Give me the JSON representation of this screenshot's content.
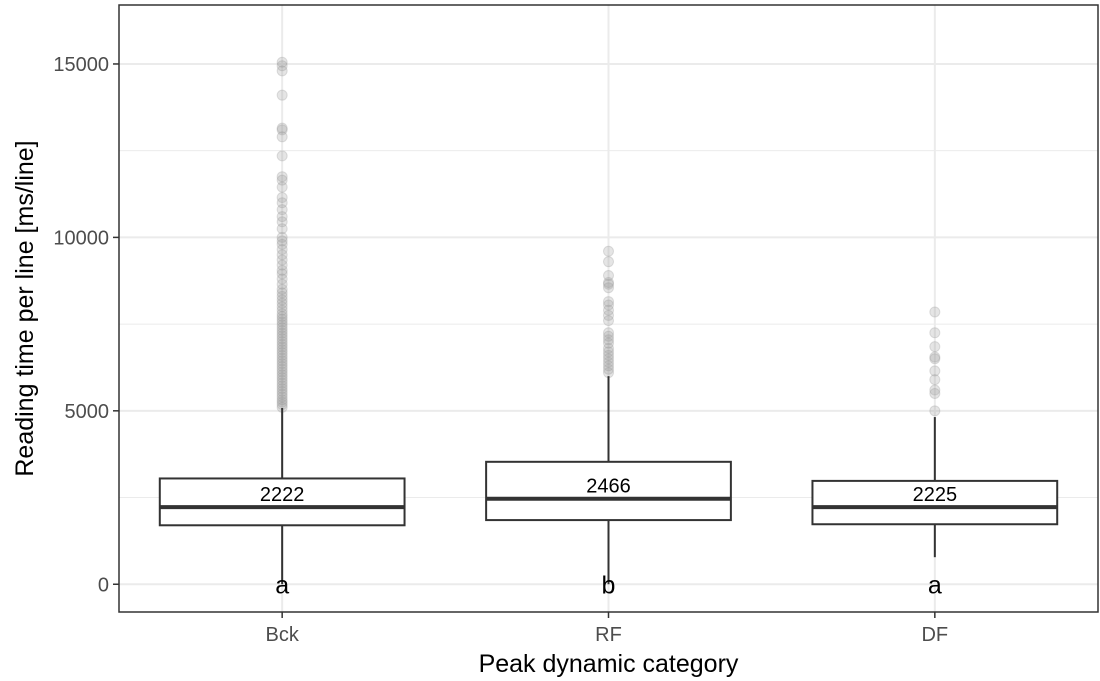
{
  "chart_data": {
    "type": "box",
    "xlabel": "Peak dynamic category",
    "ylabel": "Reading time per line [ms/line]",
    "ylim": [
      -800,
      16700
    ],
    "yticks": [
      0,
      5000,
      10000,
      15000
    ],
    "grid": true,
    "colors": {
      "box": "#333333",
      "grid": "#ebebeb",
      "outlier": "#999999",
      "axis": "#333333"
    },
    "categories": [
      "Bck",
      "RF",
      "DF"
    ],
    "boxes": [
      {
        "category": "Bck",
        "q1": 1700,
        "median": 2222,
        "q3": 3050,
        "whisker_low": 0,
        "whisker_high": 5080,
        "median_label": "2222",
        "group_letter": "a",
        "outliers": [
          5100,
          5180,
          5250,
          5320,
          5400,
          5480,
          5560,
          5640,
          5720,
          5800,
          5880,
          5960,
          6040,
          6120,
          6200,
          6280,
          6360,
          6440,
          6520,
          6600,
          6680,
          6760,
          6840,
          6920,
          7000,
          7080,
          7160,
          7240,
          7320,
          7400,
          7480,
          7560,
          7640,
          7720,
          7800,
          7900,
          8000,
          8100,
          8200,
          8300,
          8400,
          8500,
          8650,
          8800,
          8950,
          9050,
          9200,
          9350,
          9500,
          9650,
          9800,
          9900,
          10000,
          10250,
          10450,
          10600,
          10800,
          11000,
          11150,
          11450,
          11650,
          11750,
          12350,
          12900,
          13100,
          13150,
          14100,
          14800,
          14950,
          15050
        ]
      },
      {
        "category": "RF",
        "q1": 1850,
        "median": 2466,
        "q3": 3530,
        "whisker_low": 0,
        "whisker_high": 6000,
        "median_label": "2466",
        "group_letter": "b",
        "outliers": [
          6100,
          6200,
          6300,
          6400,
          6500,
          6600,
          6700,
          6800,
          6950,
          7050,
          7150,
          7250,
          7600,
          7750,
          7900,
          8050,
          8150,
          8550,
          8650,
          8700,
          8900,
          9300,
          9600
        ]
      },
      {
        "category": "DF",
        "q1": 1730,
        "median": 2225,
        "q3": 2980,
        "whisker_low": 780,
        "whisker_high": 4820,
        "median_label": "2225",
        "group_letter": "a",
        "outliers": [
          5000,
          5500,
          5600,
          5900,
          6150,
          6500,
          6550,
          6850,
          7250,
          7850
        ]
      }
    ]
  }
}
